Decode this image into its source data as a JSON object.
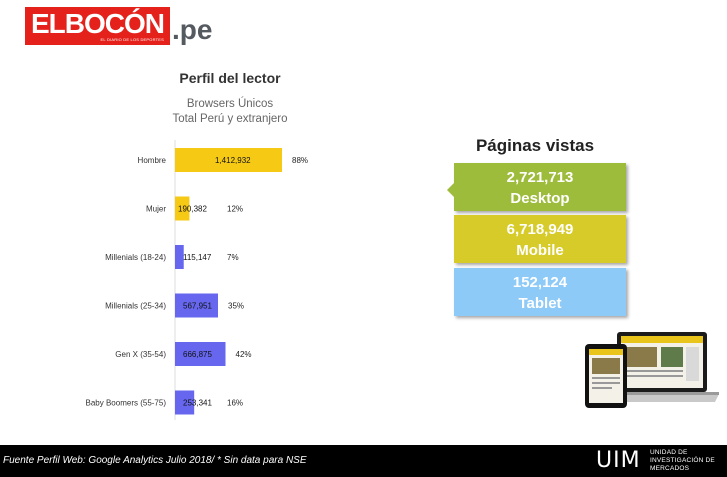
{
  "brand": {
    "logo_name": "ELBOCÓN",
    "logo_tagline": "EL DIARIO DE LOS DEPORTES",
    "domain": ".pe",
    "logo_bg": "#e4211b"
  },
  "chart_data": {
    "type": "bar",
    "orientation": "horizontal",
    "title": "Perfil del lector",
    "subtitle_line1": "Browsers Únicos",
    "subtitle_line2": "Total Perú y extranjero",
    "categories": [
      "Hombre",
      "Mujer",
      "Millenials (18-24)",
      "Millenials (25-34)",
      "Gen X (35-54)",
      "Baby Boomers (55-75)"
    ],
    "values": [
      1412932,
      190382,
      115147,
      567951,
      666875,
      253341
    ],
    "value_labels": [
      "1,412,932",
      "190,382",
      "115,147",
      "567,951",
      "666,875",
      "253,341"
    ],
    "percent_labels": [
      "88%",
      "12%",
      "7%",
      "35%",
      "42%",
      "16%"
    ],
    "colors": [
      "#f6c915",
      "#f6c915",
      "#6666ee",
      "#6666ee",
      "#6666ee",
      "#6666ee"
    ],
    "xlim": [
      0,
      1412932
    ],
    "grid": false,
    "legend": "none"
  },
  "pages": {
    "title": "Páginas vistas",
    "items": [
      {
        "value": "2,721,713",
        "label": "Desktop",
        "color": "#9ebc3c"
      },
      {
        "value": "6,718,949",
        "label": "Mobile",
        "color": "#d7cb2a"
      },
      {
        "value": "152,124",
        "label": "Tablet",
        "color": "#8ecaf7"
      }
    ]
  },
  "footer": {
    "note": "Fuente Perfil Web: Google Analytics Julio 2018/  * Sin data para NSE",
    "org_abbr": "UIM",
    "org_line1": "UNIDAD DE",
    "org_line2": "INVESTIGACIÓN DE",
    "org_line3": "MERCADOS"
  }
}
